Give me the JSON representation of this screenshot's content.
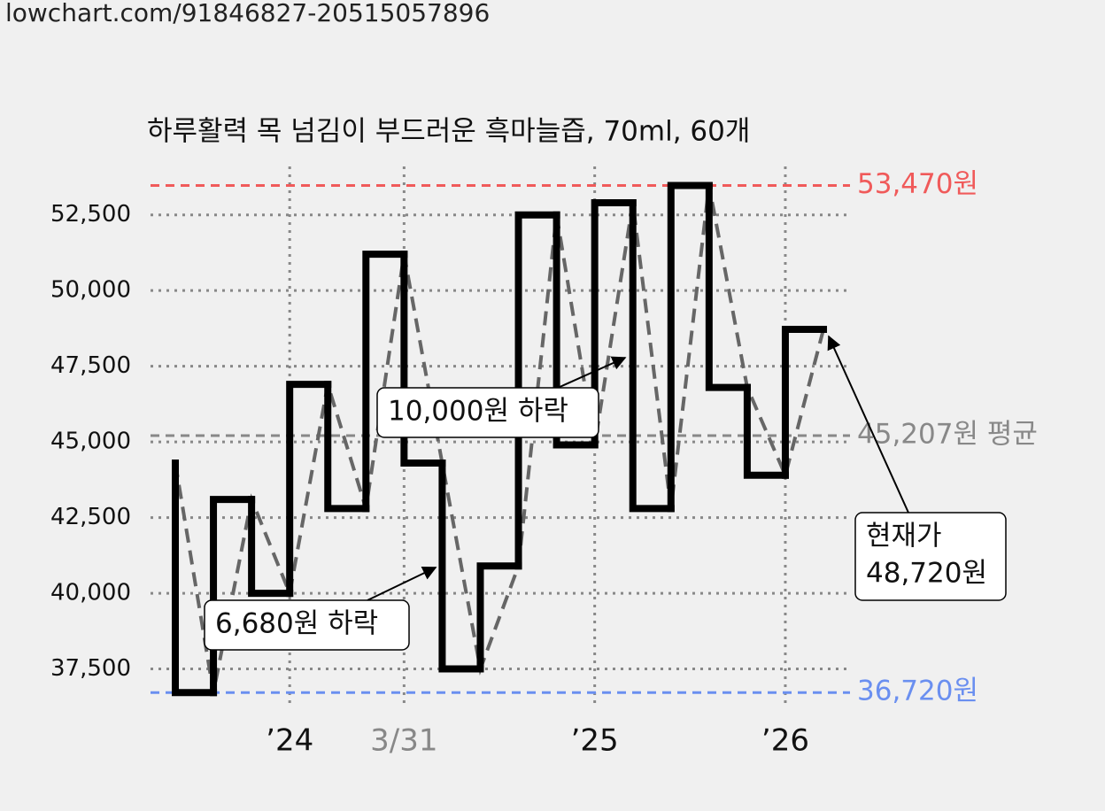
{
  "url": "lowchart.com/91846827-20515057896",
  "chart_data": {
    "type": "step",
    "title": "하루활력 목 넘김이 부드러운 흑마늘즙, 70ml, 60개",
    "categories": [
      null,
      null,
      null,
      "’24",
      null,
      null,
      "3/31",
      null,
      null,
      null,
      null,
      "’25",
      null,
      null,
      null,
      null,
      "’26",
      null
    ],
    "series": [
      {
        "color": "#000000",
        "values": [
          44300,
          36720,
          43100,
          40000,
          46900,
          42800,
          51200,
          44300,
          37500,
          40900,
          52500,
          44900,
          52900,
          42800,
          53470,
          46800,
          43900,
          48720
        ]
      }
    ],
    "ylim": [
      36200,
      54100
    ],
    "yticks": [
      {
        "value": 37500,
        "label": "37,500"
      },
      {
        "value": 40000,
        "label": "40,000"
      },
      {
        "value": 42500,
        "label": "42,500"
      },
      {
        "value": 45000,
        "label": "45,000"
      },
      {
        "value": 47500,
        "label": "47,500"
      },
      {
        "value": 50000,
        "label": "50,000"
      },
      {
        "value": 52500,
        "label": "52,500"
      }
    ],
    "grid": true,
    "reference_lines": [
      {
        "value": 53470,
        "label": "53,470원",
        "color": "#f05a5a"
      },
      {
        "value": 45207,
        "label": "45,207원 평균",
        "color": "#888888"
      },
      {
        "value": 36720,
        "label": "36,720원",
        "color": "#6a8ff0"
      }
    ],
    "annotations": [
      {
        "lines": [
          "10,000원 하락"
        ]
      },
      {
        "lines": [
          "6,680원 하락"
        ]
      },
      {
        "lines": [
          "현재가",
          "48,720원"
        ]
      }
    ]
  }
}
